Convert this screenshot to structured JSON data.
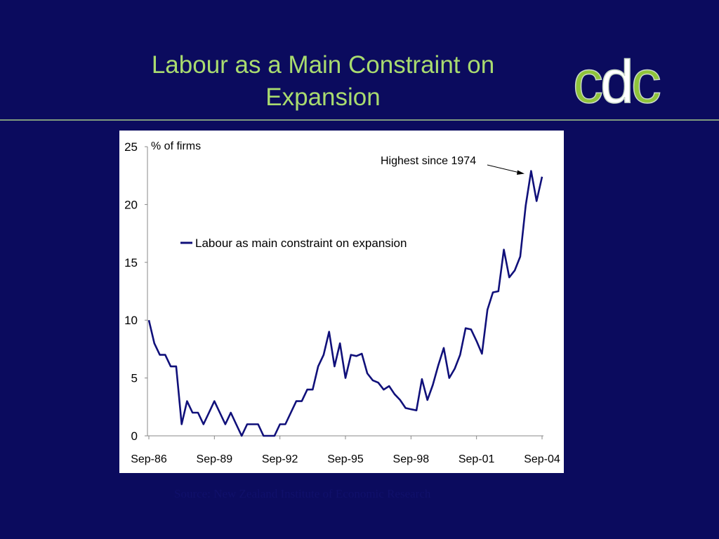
{
  "slide": {
    "title_line1": "Labour as a Main Constraint on",
    "title_line2": "Expansion",
    "source": "Source: New Zealand Institute of Economic Research"
  },
  "logo": {
    "letters": [
      "c",
      "d",
      "c"
    ],
    "colors": [
      "#8fc43a",
      "#ffffff",
      "#8fc43a"
    ]
  },
  "colors": {
    "background": "#0b0b5e",
    "title": "#a9db6f",
    "series_line": "#10107a",
    "panel": "#ffffff"
  },
  "chart_data": {
    "type": "line",
    "title": "",
    "xlabel": "",
    "ylabel": "% of firms",
    "ylim": [
      0,
      25
    ],
    "yticks": [
      0,
      5,
      10,
      15,
      20,
      25
    ],
    "x_tick_labels": [
      "Sep-86",
      "Sep-89",
      "Sep-92",
      "Sep-95",
      "Sep-98",
      "Sep-01",
      "Sep-04"
    ],
    "legend": {
      "placement": "upper-left-inside"
    },
    "grid": false,
    "annotation": {
      "text": "Highest since 1974",
      "target": "Sep-04 peak"
    },
    "series": [
      {
        "name": "Labour as main constraint on expansion",
        "values": [
          10,
          8,
          7,
          7,
          6,
          6,
          1,
          3,
          2,
          2,
          1,
          2,
          3,
          2,
          1,
          2,
          1,
          0,
          1,
          1,
          1,
          0,
          0,
          0,
          1,
          1,
          2,
          3,
          3,
          4,
          4,
          6,
          7,
          9,
          6,
          8,
          5,
          7,
          6.9,
          7.1,
          5.4,
          4.8,
          4.6,
          4,
          4.3,
          3.6,
          3.1,
          2.4,
          2.3,
          2.2,
          4.9,
          3.1,
          4.4,
          6.1,
          7.6,
          5,
          5.8,
          7,
          9.3,
          9.2,
          8.2,
          7.1,
          10.9,
          12.4,
          12.5,
          16.1,
          13.7,
          14.3,
          15.5,
          19.9,
          22.9,
          20.3,
          22.4
        ]
      }
    ]
  }
}
